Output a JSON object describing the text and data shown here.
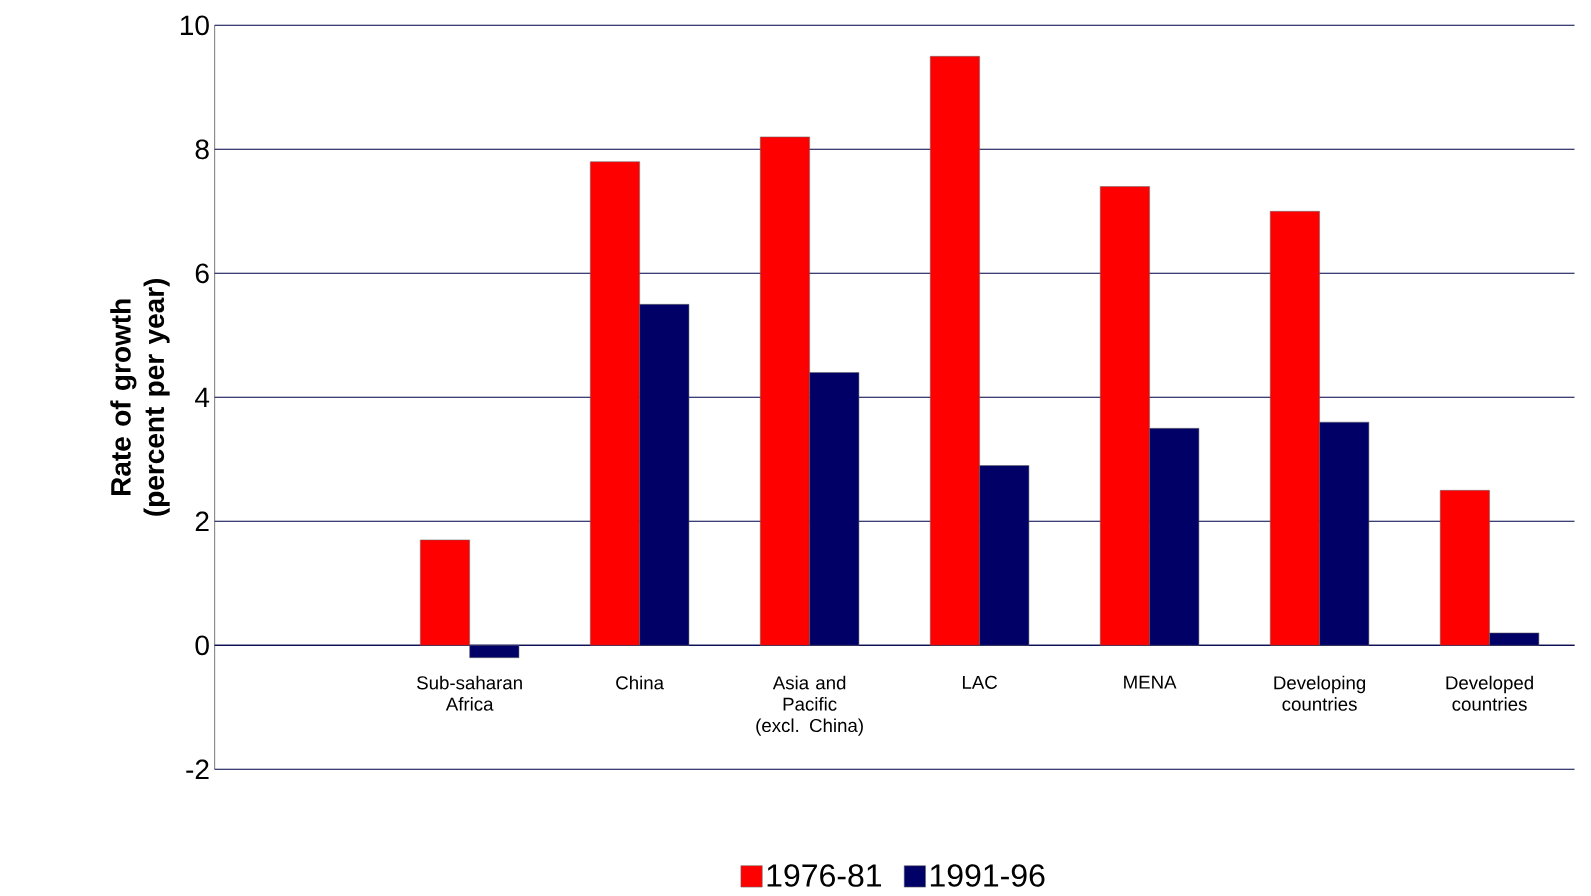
{
  "chart_data": {
    "type": "bar",
    "ylabel": "Rate of growth (percent per year)",
    "categories": [
      null,
      "Sub-saharan Africa",
      "China",
      "Asia and Pacific (excl. China)",
      "LAC",
      "MENA",
      "Developing countries",
      "Developed countries"
    ],
    "series": [
      {
        "name": "1976-81",
        "color": "#ff0000",
        "values": [
          null,
          1.7,
          7.8,
          8.2,
          9.5,
          7.4,
          7.0,
          2.5
        ]
      },
      {
        "name": "1991-96",
        "color": "#000066",
        "values": [
          null,
          -0.2,
          5.5,
          4.4,
          2.9,
          3.5,
          3.6,
          0.2
        ]
      }
    ],
    "ylim": [
      -2,
      10
    ],
    "yticks": [
      -2,
      0,
      2,
      4,
      6,
      8,
      10
    ],
    "grid": "y",
    "legend": "bottom"
  }
}
